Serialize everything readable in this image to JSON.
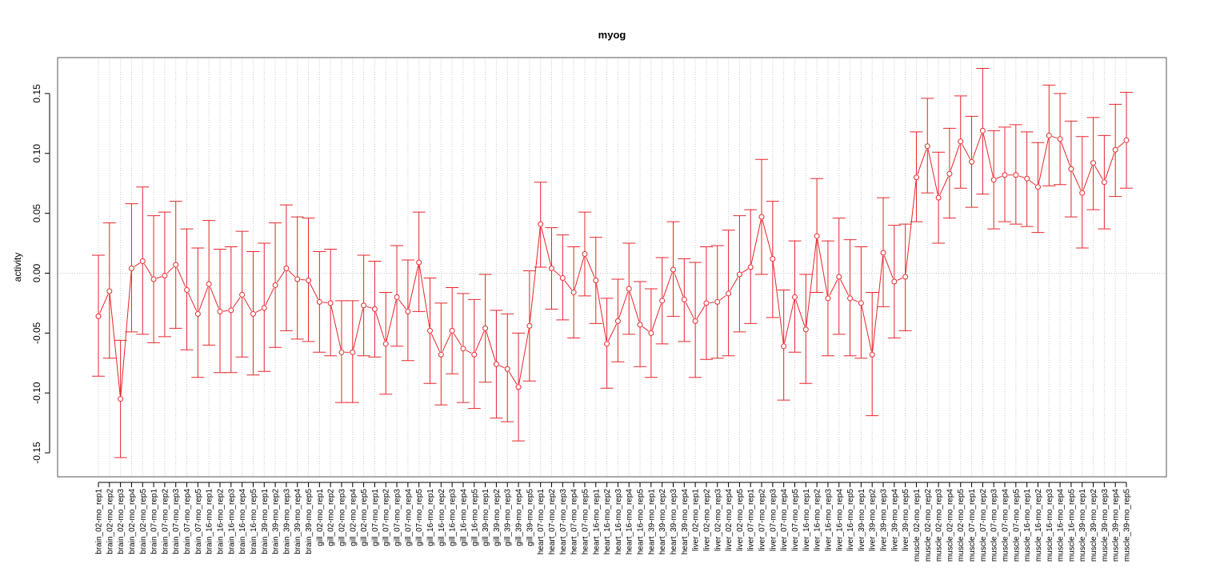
{
  "chart_data": {
    "type": "line",
    "title": "myog",
    "xlabel": "",
    "ylabel": "activity",
    "ylim": [
      -0.17,
      0.18
    ],
    "yticks": [
      -0.15,
      -0.1,
      -0.05,
      0.0,
      0.05,
      0.1,
      0.15
    ],
    "ytick_labels": [
      "-0.15",
      "-0.10",
      "-0.05",
      "0.00",
      "0.05",
      "0.10",
      "0.15"
    ],
    "grid": true,
    "error_bars": true,
    "color": "#e8262b",
    "grid_color": "#c8c8c8",
    "categories": [
      "brain_02-mo_rep1",
      "brain_02-mo_rep2",
      "brain_02-mo_rep3",
      "brain_02-mo_rep4",
      "brain_02-mo_rep5",
      "brain_07-mo_rep1",
      "brain_07-mo_rep2",
      "brain_07-mo_rep3",
      "brain_07-mo_rep4",
      "brain_07-mo_rep5",
      "brain_16-mo_rep1",
      "brain_16-mo_rep2",
      "brain_16-mo_rep3",
      "brain_16-mo_rep4",
      "brain_16-mo_rep5",
      "brain_39-mo_rep1",
      "brain_39-mo_rep2",
      "brain_39-mo_rep3",
      "brain_39-mo_rep4",
      "brain_39-mo_rep5",
      "gill_02-mo_rep1",
      "gill_02-mo_rep2",
      "gill_02-mo_rep3",
      "gill_02-mo_rep4",
      "gill_02-mo_rep5",
      "gill_07-mo_rep1",
      "gill_07-mo_rep2",
      "gill_07-mo_rep3",
      "gill_07-mo_rep4",
      "gill_07-mo_rep5",
      "gill_16-mo_rep1",
      "gill_16-mo_rep2",
      "gill_16-mo_rep3",
      "gill_16-mo_rep4",
      "gill_16-mo_rep5",
      "gill_39-mo_rep1",
      "gill_39-mo_rep2",
      "gill_39-mo_rep3",
      "gill_39-mo_rep4",
      "gill_39-mo_rep5",
      "heart_07-mo_rep1",
      "heart_07-mo_rep2",
      "heart_07-mo_rep3",
      "heart_07-mo_rep4",
      "heart_07-mo_rep5",
      "heart_16-mo_rep1",
      "heart_16-mo_rep2",
      "heart_16-mo_rep3",
      "heart_16-mo_rep4",
      "heart_16-mo_rep5",
      "heart_39-mo_rep1",
      "heart_39-mo_rep2",
      "heart_39-mo_rep3",
      "heart_39-mo_rep4",
      "liver_02-mo_rep1",
      "liver_02-mo_rep2",
      "liver_02-mo_rep3",
      "liver_02-mo_rep4",
      "liver_02-mo_rep5",
      "liver_07-mo_rep1",
      "liver_07-mo_rep2",
      "liver_07-mo_rep3",
      "liver_07-mo_rep4",
      "liver_07-mo_rep5",
      "liver_16-mo_rep1",
      "liver_16-mo_rep2",
      "liver_16-mo_rep3",
      "liver_16-mo_rep4",
      "liver_16-mo_rep5",
      "liver_39-mo_rep1",
      "liver_39-mo_rep2",
      "liver_39-mo_rep3",
      "liver_39-mo_rep4",
      "liver_39-mo_rep5",
      "muscle_02-mo_rep1",
      "muscle_02-mo_rep2",
      "muscle_02-mo_rep3",
      "muscle_02-mo_rep4",
      "muscle_02-mo_rep5",
      "muscle_07-mo_rep1",
      "muscle_07-mo_rep2",
      "muscle_07-mo_rep3",
      "muscle_07-mo_rep4",
      "muscle_07-mo_rep5",
      "muscle_16-mo_rep1",
      "muscle_16-mo_rep2",
      "muscle_16-mo_rep3",
      "muscle_16-mo_rep4",
      "muscle_16-mo_rep5",
      "muscle_39-mo_rep1",
      "muscle_39-mo_rep2",
      "muscle_39-mo_rep3",
      "muscle_39-mo_rep4",
      "muscle_39-mo_rep5"
    ],
    "values": [
      -0.036,
      -0.015,
      -0.105,
      0.004,
      0.01,
      -0.005,
      -0.002,
      0.007,
      -0.014,
      -0.034,
      -0.009,
      -0.032,
      -0.031,
      -0.018,
      -0.034,
      -0.029,
      -0.01,
      0.004,
      -0.005,
      -0.006,
      -0.024,
      -0.025,
      -0.066,
      -0.066,
      -0.027,
      -0.03,
      -0.059,
      -0.02,
      -0.032,
      0.009,
      -0.048,
      -0.068,
      -0.048,
      -0.063,
      -0.068,
      -0.046,
      -0.076,
      -0.08,
      -0.095,
      -0.044,
      0.041,
      0.004,
      -0.004,
      -0.016,
      0.016,
      -0.006,
      -0.059,
      -0.04,
      -0.013,
      -0.043,
      -0.05,
      -0.023,
      0.003,
      -0.022,
      -0.04,
      -0.025,
      -0.024,
      -0.017,
      -0.001,
      0.005,
      0.047,
      0.012,
      -0.061,
      -0.02,
      -0.047,
      0.031,
      -0.021,
      -0.003,
      -0.021,
      -0.025,
      -0.068,
      0.017,
      -0.007,
      -0.003,
      0.08,
      0.106,
      0.063,
      0.083,
      0.11,
      0.093,
      0.119,
      0.078,
      0.082,
      0.082,
      0.079,
      0.072,
      0.115,
      0.112,
      0.087,
      0.067,
      0.092,
      0.076,
      0.103,
      0.111
    ],
    "upper": [
      0.015,
      0.042,
      -0.056,
      0.058,
      0.072,
      0.048,
      0.051,
      0.06,
      0.037,
      0.021,
      0.044,
      0.02,
      0.022,
      0.035,
      0.018,
      0.025,
      0.042,
      0.057,
      0.047,
      0.046,
      0.018,
      0.02,
      -0.023,
      -0.023,
      0.015,
      0.01,
      -0.016,
      0.023,
      0.011,
      0.051,
      -0.004,
      -0.025,
      -0.012,
      -0.017,
      -0.022,
      -0.001,
      -0.031,
      -0.034,
      -0.05,
      0.002,
      0.076,
      0.038,
      0.032,
      0.022,
      0.051,
      0.03,
      -0.021,
      -0.005,
      0.025,
      -0.007,
      -0.013,
      0.013,
      0.043,
      0.012,
      0.009,
      0.022,
      0.023,
      0.036,
      0.048,
      0.053,
      0.095,
      0.06,
      -0.014,
      0.027,
      -0.001,
      0.079,
      0.027,
      0.046,
      0.028,
      0.022,
      -0.016,
      0.063,
      0.04,
      0.041,
      0.118,
      0.146,
      0.101,
      0.121,
      0.148,
      0.131,
      0.171,
      0.119,
      0.122,
      0.124,
      0.118,
      0.109,
      0.157,
      0.15,
      0.127,
      0.114,
      0.13,
      0.115,
      0.141,
      0.151
    ],
    "lower": [
      -0.086,
      -0.071,
      -0.154,
      -0.049,
      -0.051,
      -0.058,
      -0.053,
      -0.046,
      -0.064,
      -0.087,
      -0.06,
      -0.083,
      -0.083,
      -0.07,
      -0.085,
      -0.082,
      -0.062,
      -0.048,
      -0.055,
      -0.057,
      -0.066,
      -0.069,
      -0.108,
      -0.108,
      -0.069,
      -0.07,
      -0.101,
      -0.061,
      -0.073,
      -0.032,
      -0.092,
      -0.11,
      -0.084,
      -0.108,
      -0.113,
      -0.091,
      -0.121,
      -0.124,
      -0.14,
      -0.09,
      0.005,
      -0.03,
      -0.039,
      -0.054,
      -0.019,
      -0.042,
      -0.096,
      -0.074,
      -0.051,
      -0.078,
      -0.087,
      -0.059,
      -0.036,
      -0.057,
      -0.087,
      -0.072,
      -0.071,
      -0.069,
      -0.049,
      -0.042,
      -0.001,
      -0.037,
      -0.106,
      -0.066,
      -0.092,
      -0.016,
      -0.069,
      -0.051,
      -0.069,
      -0.071,
      -0.119,
      -0.028,
      -0.054,
      -0.048,
      0.043,
      0.067,
      0.025,
      0.046,
      0.071,
      0.055,
      0.066,
      0.037,
      0.043,
      0.041,
      0.039,
      0.034,
      0.073,
      0.074,
      0.047,
      0.021,
      0.053,
      0.037,
      0.064,
      0.071
    ]
  }
}
